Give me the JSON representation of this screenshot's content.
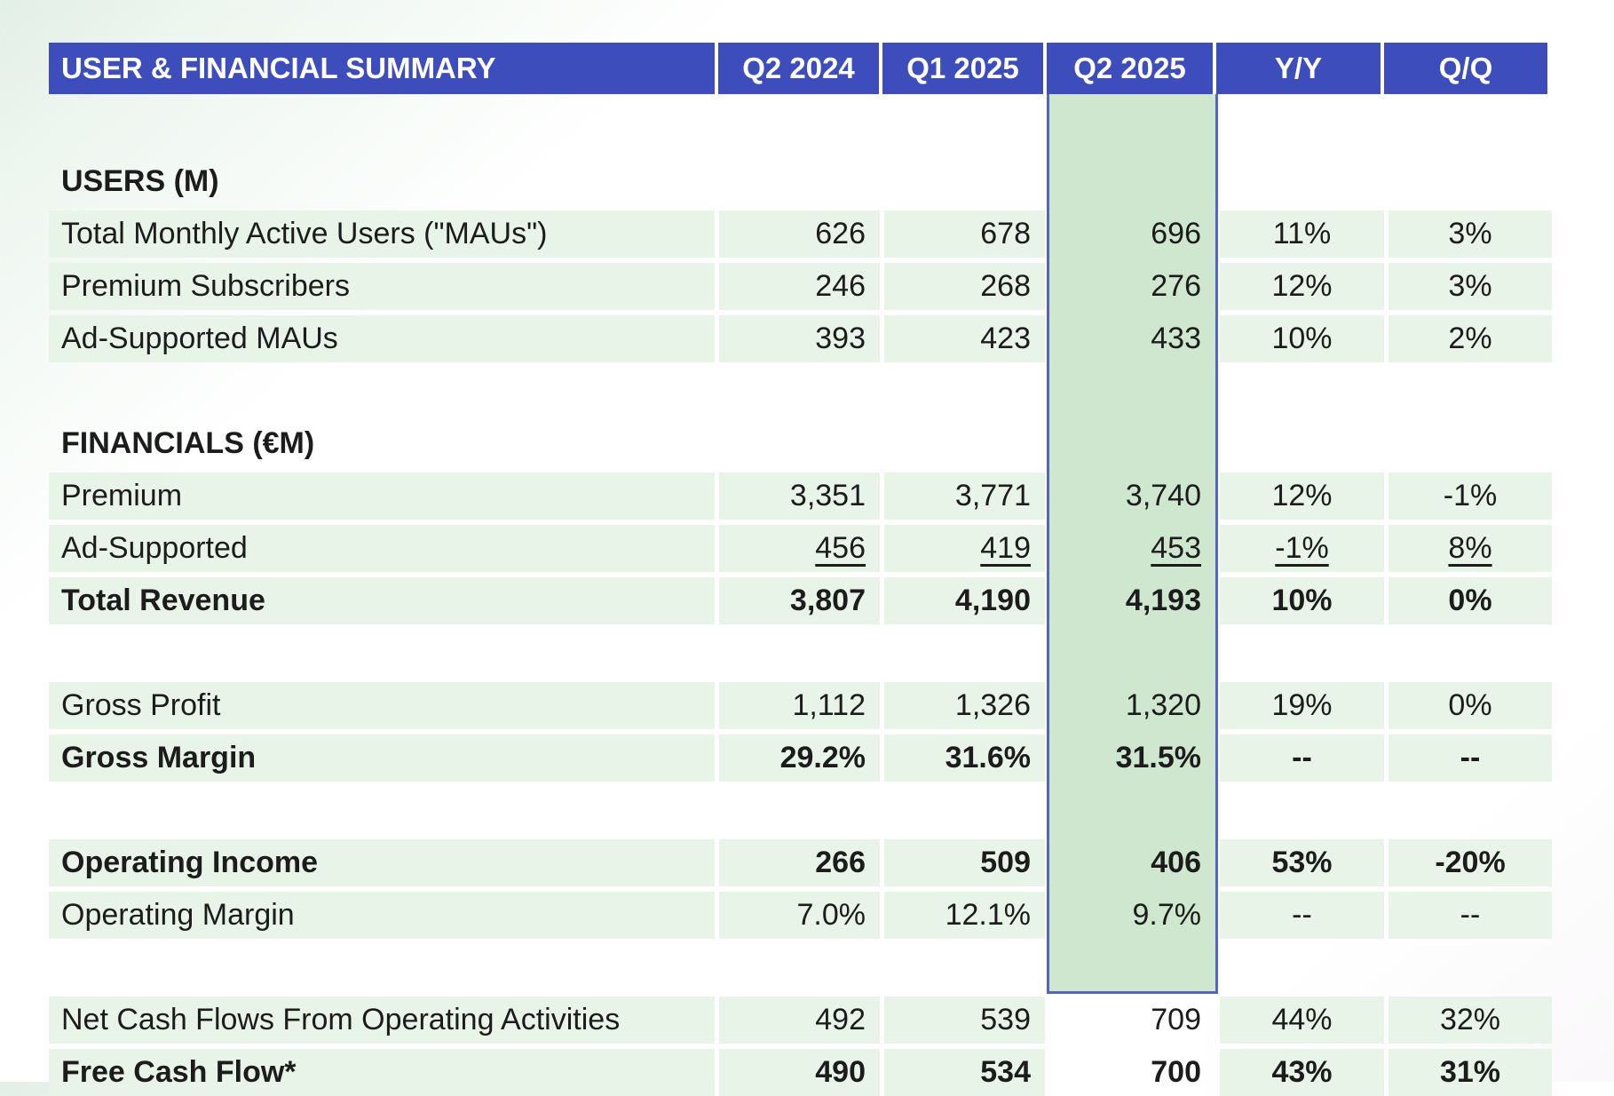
{
  "table": {
    "title": "USER & FINANCIAL SUMMARY",
    "columns": [
      "Q2 2024",
      "Q1 2025",
      "Q2 2025",
      "Y/Y",
      "Q/Q"
    ],
    "highlighted_column": "Q2 2025",
    "colors": {
      "header_bg": "#3d4dbc",
      "header_text": "#ffffff",
      "row_band_bg": "#e9f4e9",
      "highlight_bg": "#cfe7cf",
      "highlight_border": "#5565bd",
      "text": "#1c1c1c"
    },
    "rows": [
      {
        "type": "spacer_tall"
      },
      {
        "type": "section",
        "label": "USERS (M)"
      },
      {
        "type": "data",
        "label": "Total Monthly Active Users (\"MAUs\")",
        "values": [
          "626",
          "678",
          "696",
          "11%",
          "3%"
        ]
      },
      {
        "type": "data",
        "label": "Premium Subscribers",
        "values": [
          "246",
          "268",
          "276",
          "12%",
          "3%"
        ]
      },
      {
        "type": "data",
        "label": "Ad-Supported MAUs",
        "values": [
          "393",
          "423",
          "433",
          "10%",
          "2%"
        ]
      },
      {
        "type": "spacer"
      },
      {
        "type": "section",
        "label": "FINANCIALS (€M)"
      },
      {
        "type": "data",
        "label": "Premium",
        "values": [
          "3,351",
          "3,771",
          "3,740",
          "12%",
          "-1%"
        ]
      },
      {
        "type": "data",
        "label": "Ad-Supported",
        "values": [
          "456",
          "419",
          "453",
          "-1%",
          "8%"
        ],
        "underline": true
      },
      {
        "type": "data",
        "label": "Total Revenue",
        "values": [
          "3,807",
          "4,190",
          "4,193",
          "10%",
          "0%"
        ],
        "bold": true
      },
      {
        "type": "spacer"
      },
      {
        "type": "data",
        "label": "Gross Profit",
        "values": [
          "1,112",
          "1,326",
          "1,320",
          "19%",
          "0%"
        ]
      },
      {
        "type": "data",
        "label": "Gross Margin",
        "values": [
          "29.2%",
          "31.6%",
          "31.5%",
          "--",
          "--"
        ],
        "bold": true
      },
      {
        "type": "spacer"
      },
      {
        "type": "data",
        "label": "Operating Income",
        "values": [
          "266",
          "509",
          "406",
          "53%",
          "-20%"
        ],
        "bold": true
      },
      {
        "type": "data",
        "label": "Operating Margin",
        "values": [
          "7.0%",
          "12.1%",
          "9.7%",
          "--",
          "--"
        ]
      },
      {
        "type": "spacer"
      },
      {
        "type": "data",
        "label": "Net Cash Flows From Operating Activities",
        "values": [
          "492",
          "539",
          "709",
          "44%",
          "32%"
        ]
      },
      {
        "type": "data",
        "label": "Free Cash Flow*",
        "values": [
          "490",
          "534",
          "700",
          "43%",
          "31%"
        ],
        "bold": true
      }
    ]
  },
  "chart_data": {
    "type": "table",
    "title": "USER & FINANCIAL SUMMARY",
    "columns": [
      "Q2 2024",
      "Q1 2025",
      "Q2 2025",
      "Y/Y",
      "Q/Q"
    ],
    "highlighted_column": "Q2 2025",
    "sections": [
      {
        "name": "USERS (M)",
        "rows": [
          {
            "metric": "Total Monthly Active Users (\"MAUs\")",
            "q2_2024": 626,
            "q1_2025": 678,
            "q2_2025": 696,
            "yoy": "11%",
            "qoq": "3%"
          },
          {
            "metric": "Premium Subscribers",
            "q2_2024": 246,
            "q1_2025": 268,
            "q2_2025": 276,
            "yoy": "12%",
            "qoq": "3%"
          },
          {
            "metric": "Ad-Supported MAUs",
            "q2_2024": 393,
            "q1_2025": 423,
            "q2_2025": 433,
            "yoy": "10%",
            "qoq": "2%"
          }
        ]
      },
      {
        "name": "FINANCIALS (€M)",
        "rows": [
          {
            "metric": "Premium",
            "q2_2024": 3351,
            "q1_2025": 3771,
            "q2_2025": 3740,
            "yoy": "12%",
            "qoq": "-1%"
          },
          {
            "metric": "Ad-Supported",
            "q2_2024": 456,
            "q1_2025": 419,
            "q2_2025": 453,
            "yoy": "-1%",
            "qoq": "8%"
          },
          {
            "metric": "Total Revenue",
            "q2_2024": 3807,
            "q1_2025": 4190,
            "q2_2025": 4193,
            "yoy": "10%",
            "qoq": "0%"
          },
          {
            "metric": "Gross Profit",
            "q2_2024": 1112,
            "q1_2025": 1326,
            "q2_2025": 1320,
            "yoy": "19%",
            "qoq": "0%"
          },
          {
            "metric": "Gross Margin",
            "q2_2024": "29.2%",
            "q1_2025": "31.6%",
            "q2_2025": "31.5%",
            "yoy": "--",
            "qoq": "--"
          },
          {
            "metric": "Operating Income",
            "q2_2024": 266,
            "q1_2025": 509,
            "q2_2025": 406,
            "yoy": "53%",
            "qoq": "-20%"
          },
          {
            "metric": "Operating Margin",
            "q2_2024": "7.0%",
            "q1_2025": "12.1%",
            "q2_2025": "9.7%",
            "yoy": "--",
            "qoq": "--"
          },
          {
            "metric": "Net Cash Flows From Operating Activities",
            "q2_2024": 492,
            "q1_2025": 539,
            "q2_2025": 709,
            "yoy": "44%",
            "qoq": "32%"
          },
          {
            "metric": "Free Cash Flow*",
            "q2_2024": 490,
            "q1_2025": 534,
            "q2_2025": 700,
            "yoy": "43%",
            "qoq": "31%"
          }
        ]
      }
    ]
  }
}
